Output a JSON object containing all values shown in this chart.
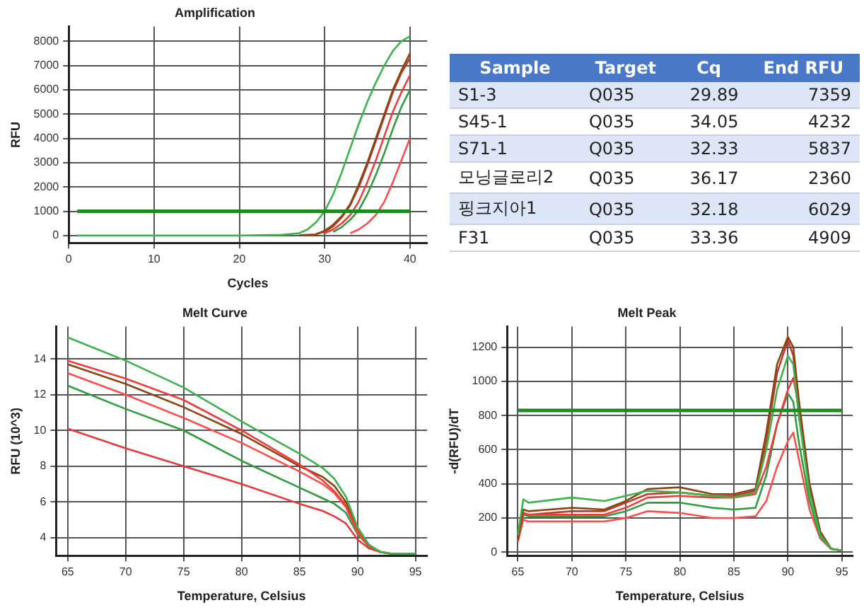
{
  "chart_data": [
    {
      "type": "line",
      "title": "Amplification",
      "xlabel": "Cycles",
      "ylabel": "RFU",
      "xlim": [
        0,
        42
      ],
      "xticks": [
        0,
        10,
        20,
        30,
        40
      ],
      "ylim": [
        -300,
        8600
      ],
      "yticks": [
        0,
        1000,
        2000,
        3000,
        4000,
        5000,
        6000,
        7000,
        8000
      ],
      "grid": true,
      "legend": false,
      "marker": "none",
      "line_style": "solid",
      "x": [
        1,
        5,
        10,
        15,
        20,
        25,
        27,
        28,
        29,
        30,
        31,
        32,
        33,
        34,
        35,
        36,
        37,
        38,
        39,
        40
      ],
      "ref_lines": [
        {
          "axis": "y",
          "value": 1000,
          "color": "#1f8a1f"
        }
      ],
      "series": [
        {
          "color": "#3cb44b",
          "values": [
            0,
            0,
            0,
            0,
            0,
            30,
            100,
            250,
            550,
            1000,
            1700,
            2600,
            3600,
            4600,
            5500,
            6300,
            7000,
            7600,
            8000,
            8200
          ]
        },
        {
          "color": "#8b4513",
          "values": [
            null,
            null,
            null,
            null,
            null,
            null,
            10,
            30,
            50,
            200,
            450,
            800,
            1300,
            2100,
            3000,
            4000,
            5000,
            6000,
            6800,
            7500
          ]
        },
        {
          "color": "#c0392b",
          "values": [
            null,
            null,
            null,
            null,
            null,
            null,
            null,
            null,
            80,
            150,
            380,
            750,
            1250,
            2000,
            2900,
            3900,
            4900,
            5900,
            6700,
            7300
          ]
        },
        {
          "color": "#f03c3c",
          "values": [
            null,
            null,
            null,
            null,
            null,
            null,
            null,
            null,
            null,
            100,
            250,
            500,
            850,
            1400,
            2200,
            3100,
            4100,
            5100,
            5900,
            6600
          ]
        },
        {
          "color": "#2e9e3e",
          "values": [
            null,
            null,
            null,
            null,
            null,
            null,
            null,
            null,
            null,
            null,
            150,
            350,
            650,
            1050,
            1700,
            2500,
            3400,
            4400,
            5300,
            6000
          ]
        },
        {
          "color": "#ff4d4d",
          "values": [
            null,
            null,
            null,
            null,
            null,
            null,
            null,
            null,
            null,
            null,
            null,
            null,
            100,
            250,
            500,
            850,
            1400,
            2200,
            3100,
            4000
          ]
        }
      ]
    },
    {
      "type": "other",
      "xlabel": "Sample",
      "categories": [
        "S1-3",
        "S45-1",
        "S71-1",
        "모닝글로리2",
        "핑크지아1",
        "F31"
      ],
      "series": [
        {
          "name": "Target",
          "values": [
            null,
            null,
            null,
            null,
            null,
            null
          ],
          "value_labels": [
            "Q035",
            "Q035",
            "Q035",
            "Q035",
            "Q035",
            "Q035"
          ]
        },
        {
          "name": "Cq",
          "values": [
            29.89,
            34.05,
            32.33,
            36.17,
            32.18,
            33.36
          ]
        },
        {
          "name": "End RFU",
          "values": [
            7359,
            4232,
            5837,
            2360,
            6029,
            4909
          ]
        }
      ],
      "data_labels": true
    },
    {
      "type": "line",
      "title": "Melt Curve",
      "xlabel": "Temperature, Celsius",
      "ylabel": "RFU (10^3)",
      "xlim": [
        64,
        96
      ],
      "xticks": [
        65,
        70,
        75,
        80,
        85,
        90,
        95
      ],
      "ylim": [
        3,
        15.8
      ],
      "yticks": [
        4,
        6,
        8,
        10,
        12,
        14
      ],
      "grid": true,
      "legend": false,
      "marker": "none",
      "line_style": "solid",
      "x": [
        65,
        70,
        75,
        80,
        85,
        87,
        88,
        89,
        90,
        91,
        92,
        93,
        95
      ],
      "series": [
        {
          "color": "#3cb44b",
          "values": [
            15.2,
            13.9,
            12.4,
            10.5,
            8.7,
            7.9,
            7.3,
            6.3,
            4.6,
            3.6,
            3.2,
            3.1,
            3.1
          ]
        },
        {
          "color": "#f03c3c",
          "values": [
            13.9,
            12.9,
            11.7,
            10.0,
            8.1,
            7.2,
            6.6,
            5.8,
            4.4,
            3.5,
            3.2,
            3.1,
            3.1
          ]
        },
        {
          "color": "#8b4513",
          "values": [
            13.7,
            12.6,
            11.3,
            9.8,
            8.0,
            7.4,
            6.9,
            6.0,
            4.5,
            3.6,
            3.2,
            3.1,
            3.1
          ]
        },
        {
          "color": "#ff4d4d",
          "values": [
            13.2,
            12.0,
            10.7,
            9.3,
            7.7,
            7.0,
            6.5,
            5.7,
            4.3,
            3.5,
            3.2,
            3.1,
            3.1
          ]
        },
        {
          "color": "#2e9e3e",
          "values": [
            12.5,
            11.2,
            10.0,
            8.3,
            6.8,
            6.2,
            5.9,
            5.4,
            4.2,
            3.5,
            3.2,
            3.1,
            3.1
          ]
        },
        {
          "color": "#e8383d",
          "values": [
            10.1,
            9.0,
            8.0,
            7.0,
            5.9,
            5.5,
            5.2,
            4.8,
            3.9,
            3.4,
            3.2,
            3.1,
            3.1
          ]
        }
      ]
    },
    {
      "type": "line",
      "title": "Melt Peak",
      "xlabel": "Temperature, Celsius",
      "ylabel": "-d(RFU)/dT",
      "xlim": [
        64,
        96
      ],
      "xticks": [
        65,
        70,
        75,
        80,
        85,
        90,
        95
      ],
      "ylim": [
        -20,
        1320
      ],
      "yticks": [
        0,
        200,
        400,
        600,
        800,
        1000,
        1200
      ],
      "grid": true,
      "legend": false,
      "marker": "none",
      "line_style": "solid",
      "x": [
        65,
        65.5,
        66,
        70,
        73,
        75,
        77,
        80,
        83,
        85,
        87,
        88,
        89,
        90,
        90.5,
        91,
        92,
        93,
        94,
        95
      ],
      "ref_lines": [
        {
          "axis": "y",
          "value": 830,
          "color": "#1f8a1f"
        }
      ],
      "series": [
        {
          "color": "#3cb44b",
          "values": [
            100,
            310,
            290,
            320,
            300,
            330,
            360,
            350,
            330,
            320,
            350,
            600,
            950,
            1150,
            1100,
            800,
            350,
            100,
            20,
            10
          ]
        },
        {
          "color": "#8b4513",
          "values": [
            80,
            250,
            240,
            260,
            250,
            300,
            370,
            380,
            340,
            340,
            370,
            700,
            1100,
            1260,
            1200,
            900,
            400,
            120,
            20,
            10
          ]
        },
        {
          "color": "#f03c3c",
          "values": [
            80,
            230,
            220,
            220,
            220,
            260,
            320,
            330,
            320,
            320,
            340,
            500,
            750,
            950,
            1020,
            850,
            400,
            120,
            20,
            10
          ]
        },
        {
          "color": "#c0392b",
          "values": [
            70,
            230,
            220,
            240,
            240,
            290,
            340,
            350,
            330,
            330,
            360,
            650,
            1050,
            1240,
            1150,
            850,
            380,
            110,
            20,
            10
          ]
        },
        {
          "color": "#2e9e3e",
          "values": [
            90,
            220,
            210,
            210,
            210,
            240,
            290,
            290,
            260,
            250,
            260,
            450,
            750,
            930,
            880,
            650,
            300,
            90,
            20,
            10
          ]
        },
        {
          "color": "#ff4d4d",
          "values": [
            60,
            190,
            180,
            180,
            180,
            200,
            240,
            230,
            200,
            200,
            210,
            300,
            500,
            650,
            700,
            550,
            250,
            80,
            20,
            10
          ]
        }
      ]
    }
  ]
}
